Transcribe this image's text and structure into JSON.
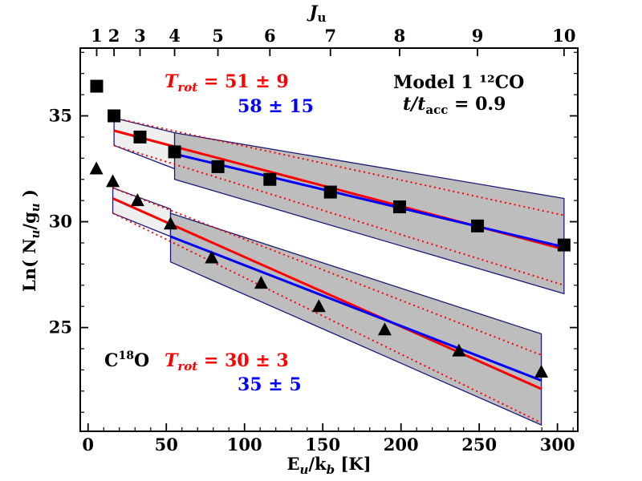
{
  "chart_data": {
    "type": "scatter",
    "xlabel": "E_u/k_b [K]",
    "ylabel": "Ln( N_u/g_u )",
    "top_axis_label": "J_u",
    "xlim": [
      -5,
      313
    ],
    "ylim": [
      20.1,
      38.2
    ],
    "x_ticks": [
      0,
      50,
      100,
      150,
      200,
      250,
      300
    ],
    "y_ticks": [
      25,
      30,
      35
    ],
    "top_ticks": [
      {
        "label": "1",
        "x": 5.5
      },
      {
        "label": "2",
        "x": 16.6
      },
      {
        "label": "3",
        "x": 33.2
      },
      {
        "label": "4",
        "x": 55.3
      },
      {
        "label": "5",
        "x": 83.0
      },
      {
        "label": "6",
        "x": 116.2
      },
      {
        "label": "7",
        "x": 154.9
      },
      {
        "label": "8",
        "x": 199.1
      },
      {
        "label": "9",
        "x": 248.9
      },
      {
        "label": "10",
        "x": 304.2
      }
    ],
    "series": [
      {
        "name": "12CO",
        "marker": "square",
        "x": [
          5.5,
          16.6,
          33.2,
          55.3,
          83.0,
          116.2,
          154.9,
          199.1,
          248.9,
          304.2
        ],
        "y": [
          36.4,
          35.0,
          34.0,
          33.3,
          32.6,
          32.0,
          31.4,
          30.7,
          29.8,
          28.9
        ]
      },
      {
        "name": "C18O",
        "marker": "triangle",
        "x": [
          5.3,
          15.8,
          31.6,
          52.7,
          79.0,
          110.6,
          147.5,
          189.6,
          237.0,
          289.7
        ],
        "y": [
          32.5,
          31.9,
          31.0,
          29.9,
          28.3,
          27.1,
          26.0,
          24.9,
          23.9,
          22.9
        ]
      }
    ],
    "fits": [
      {
        "color": "#ff0000",
        "x": [
          16.6,
          304.2
        ],
        "y": [
          34.3,
          28.7
        ]
      },
      {
        "color": "#0000ff",
        "x": [
          55.3,
          304.2
        ],
        "y": [
          33.2,
          28.8
        ]
      },
      {
        "color": "#ff0000",
        "x": [
          15.8,
          289.7
        ],
        "y": [
          31.1,
          22.1
        ]
      },
      {
        "color": "#0000ff",
        "x": [
          52.7,
          289.7
        ],
        "y": [
          29.3,
          22.5
        ]
      }
    ],
    "dotted_bounds": [
      {
        "x": [
          16.6,
          304.2
        ],
        "y": [
          34.9,
          30.3
        ]
      },
      {
        "x": [
          16.6,
          304.2
        ],
        "y": [
          33.6,
          27.0
        ]
      },
      {
        "x": [
          15.8,
          289.7
        ],
        "y": [
          31.6,
          23.7
        ]
      },
      {
        "x": [
          15.8,
          289.7
        ],
        "y": [
          30.4,
          20.5
        ]
      }
    ],
    "shaded_regions": [
      {
        "fill": "#efefef",
        "x_left": 16.6,
        "x_right": 55.3,
        "top": [
          34.9,
          34.2
        ],
        "bottom": [
          33.6,
          32.5
        ]
      },
      {
        "fill": "#bdbdbd",
        "x_left": 55.3,
        "x_right": 304.2,
        "top": [
          34.2,
          31.1
        ],
        "bottom": [
          32.0,
          26.6
        ]
      },
      {
        "fill": "#efefef",
        "x_left": 15.8,
        "x_right": 52.7,
        "top": [
          31.6,
          30.6
        ],
        "bottom": [
          30.4,
          29.3
        ]
      },
      {
        "fill": "#bdbdbd",
        "x_left": 52.7,
        "x_right": 289.7,
        "top": [
          30.4,
          24.7
        ],
        "bottom": [
          28.1,
          20.4
        ]
      }
    ],
    "annotations": {
      "model": "Model 1 ¹²CO",
      "t_ratio": "t/t",
      "t_sub": "acc",
      "t_value": " = 0.9",
      "co_trot_label": "T",
      "co_trot_sub": "rot",
      "co_trot_value": " = 51 ± 9",
      "co_blue": "58 ± 15",
      "c18o_label": "C",
      "c18o_sup": "18",
      "c18o_end": "O",
      "c18o_trot_label": "T",
      "c18o_trot_sub": "rot",
      "c18o_trot_value": " = 30 ± 3",
      "c18o_blue": "35 ± 5",
      "red": "#ff0000",
      "blue": "#0000ff"
    }
  }
}
